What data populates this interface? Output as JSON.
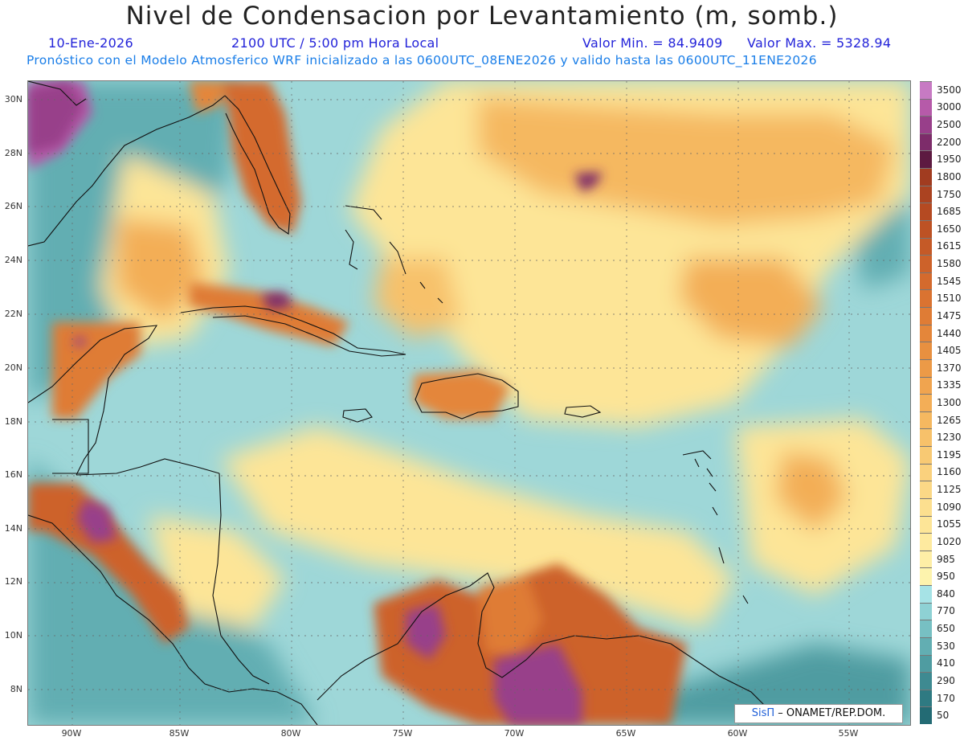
{
  "header": {
    "title": "Nivel de Condensacion por Levantamiento (m, somb.)",
    "date": "10-Ene-2026",
    "time": "2100 UTC / 5:00 pm Hora Local",
    "value_min": "Valor Min. = 84.9409",
    "value_max": "Valor Max. = 5328.94",
    "forecast": "Pronóstico con el Modelo Atmosferico WRF inicializado a las 0600UTC_08ENE2026 y valido hasta las  0600UTC_11ENE2026"
  },
  "map": {
    "extent": {
      "lon": [
        -92,
        -52.5
      ],
      "lat": [
        6.8,
        30.6
      ]
    },
    "lat_labels": [
      "30N",
      "28N",
      "26N",
      "24N",
      "22N",
      "20N",
      "18N",
      "16N",
      "14N",
      "12N",
      "10N",
      "8N"
    ],
    "lon_labels": [
      "90W",
      "85W",
      "80W",
      "75W",
      "70W",
      "65W",
      "60W",
      "55W"
    ],
    "background_color": "#9ed7d8"
  },
  "legend": {
    "levels": [
      "3500",
      "3000",
      "2500",
      "2200",
      "1950",
      "1800",
      "1750",
      "1685",
      "1650",
      "1615",
      "1580",
      "1545",
      "1510",
      "1475",
      "1440",
      "1405",
      "1370",
      "1335",
      "1300",
      "1265",
      "1230",
      "1195",
      "1160",
      "1125",
      "1090",
      "1055",
      "1020",
      "985",
      "950",
      "840",
      "770",
      "650",
      "530",
      "410",
      "290",
      "170",
      "50"
    ],
    "colors": [
      "#c77ac3",
      "#b65aa9",
      "#983f8a",
      "#7d2c6a",
      "#5d1a41",
      "#a13c20",
      "#ab4321",
      "#b54a22",
      "#bd5224",
      "#c55a27",
      "#cd622a",
      "#d46a2d",
      "#da7331",
      "#df7c35",
      "#e4863a",
      "#e89040",
      "#ec9a47",
      "#f0a44f",
      "#f3ae57",
      "#f5b860",
      "#f7c16a",
      "#f8c973",
      "#fad17d",
      "#fbd886",
      "#fcdf8f",
      "#fde597",
      "#feea9f",
      "#feeea6",
      "#fdf3ad",
      "#a6e3e6",
      "#8ed1d4",
      "#77c0c3",
      "#62aeb2",
      "#4f9ca1",
      "#3e8a91",
      "#2f7a82",
      "#236b74"
    ]
  },
  "credit": {
    "brand": "SisΠ",
    "text": " – ONAMET/REP.DOM."
  }
}
